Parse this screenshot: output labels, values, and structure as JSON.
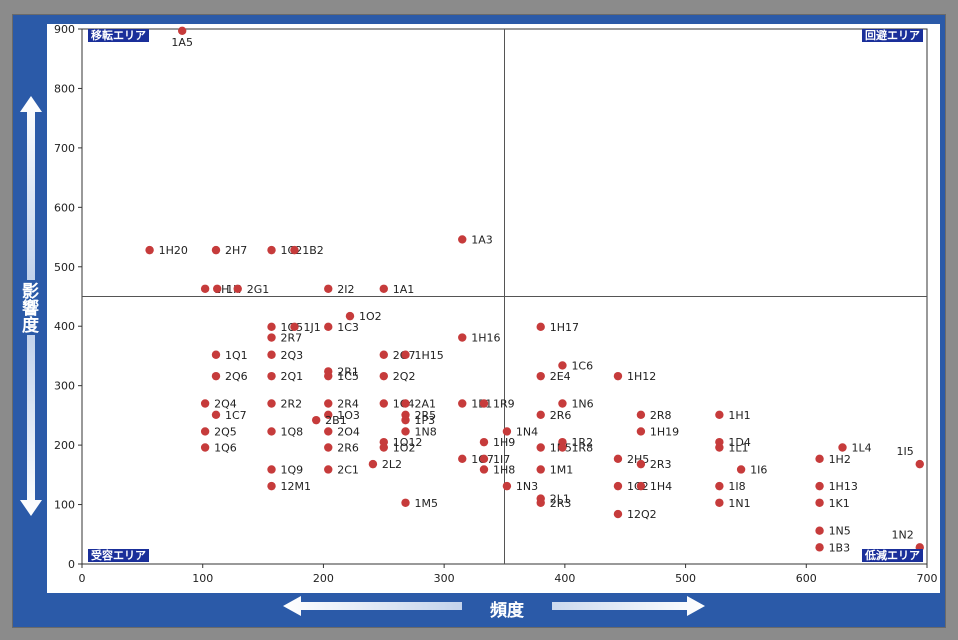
{
  "chart_data": {
    "type": "scatter",
    "title": "",
    "xlabel": "頻度",
    "ylabel": "影響度",
    "xlim": [
      0,
      700
    ],
    "ylim": [
      0,
      900
    ],
    "xticks": [
      0,
      100,
      200,
      300,
      400,
      500,
      600,
      700
    ],
    "yticks": [
      0,
      100,
      200,
      300,
      400,
      500,
      600,
      700,
      800,
      900
    ],
    "divider_x": 350,
    "divider_y": 450,
    "point_color": "#c63b3b",
    "area_labels": {
      "top_left": "移転エリア",
      "top_right": "回避エリア",
      "bottom_left": "受容エリア",
      "bottom_right": "低減エリア"
    },
    "points": [
      {
        "label": "1A5",
        "x": 83,
        "y": 897
      },
      {
        "label": "1H20",
        "x": 56,
        "y": 528
      },
      {
        "label": "2H7",
        "x": 111,
        "y": 528
      },
      {
        "label": "1C21B2",
        "x": 157,
        "y": 528
      },
      {
        "label": "",
        "x": 176,
        "y": 528
      },
      {
        "label": "1A3",
        "x": 315,
        "y": 546
      },
      {
        "label": "1H",
        "x": 102,
        "y": 463
      },
      {
        "label": "1K",
        "x": 112,
        "y": 463
      },
      {
        "label": "2G1",
        "x": 129,
        "y": 463
      },
      {
        "label": "2I2",
        "x": 204,
        "y": 463
      },
      {
        "label": "1A1",
        "x": 250,
        "y": 463
      },
      {
        "label": "1O2",
        "x": 222,
        "y": 417
      },
      {
        "label": "1O5",
        "x": 157,
        "y": 399
      },
      {
        "label": "1J1",
        "x": 176,
        "y": 399
      },
      {
        "label": "1C3",
        "x": 204,
        "y": 399
      },
      {
        "label": "1H17",
        "x": 380,
        "y": 399
      },
      {
        "label": "2R7",
        "x": 157,
        "y": 381
      },
      {
        "label": "1H16",
        "x": 315,
        "y": 381
      },
      {
        "label": "1Q1",
        "x": 111,
        "y": 352
      },
      {
        "label": "2Q3",
        "x": 157,
        "y": 352
      },
      {
        "label": "2O7",
        "x": 250,
        "y": 352
      },
      {
        "label": "1H15",
        "x": 268,
        "y": 352
      },
      {
        "label": "1C6",
        "x": 398,
        "y": 334
      },
      {
        "label": "2R1",
        "x": 204,
        "y": 324
      },
      {
        "label": "2Q6",
        "x": 111,
        "y": 316
      },
      {
        "label": "2Q1",
        "x": 157,
        "y": 316
      },
      {
        "label": "1C5",
        "x": 204,
        "y": 316
      },
      {
        "label": "2Q2",
        "x": 250,
        "y": 316
      },
      {
        "label": "2E4",
        "x": 380,
        "y": 316
      },
      {
        "label": "1H12",
        "x": 444,
        "y": 316
      },
      {
        "label": "2Q4",
        "x": 102,
        "y": 270
      },
      {
        "label": "2R2",
        "x": 157,
        "y": 270
      },
      {
        "label": "2R4",
        "x": 204,
        "y": 270
      },
      {
        "label": "1C4",
        "x": 250,
        "y": 270
      },
      {
        "label": "2A1",
        "x": 268,
        "y": 270
      },
      {
        "label": "1E1",
        "x": 315,
        "y": 270
      },
      {
        "label": "1R9",
        "x": 333,
        "y": 270
      },
      {
        "label": "1N6",
        "x": 398,
        "y": 270
      },
      {
        "label": "1C7",
        "x": 111,
        "y": 251
      },
      {
        "label": "1O3",
        "x": 204,
        "y": 251
      },
      {
        "label": "2R5",
        "x": 268,
        "y": 251
      },
      {
        "label": "2R6",
        "x": 380,
        "y": 251
      },
      {
        "label": "2R8",
        "x": 463,
        "y": 251
      },
      {
        "label": "1H1",
        "x": 528,
        "y": 251
      },
      {
        "label": "2B1",
        "x": 194,
        "y": 242
      },
      {
        "label": "1P3",
        "x": 268,
        "y": 242
      },
      {
        "label": "2Q5",
        "x": 102,
        "y": 223
      },
      {
        "label": "1Q8",
        "x": 157,
        "y": 223
      },
      {
        "label": "2O4",
        "x": 204,
        "y": 223
      },
      {
        "label": "1N8",
        "x": 268,
        "y": 223
      },
      {
        "label": "1N4",
        "x": 352,
        "y": 223
      },
      {
        "label": "1H19",
        "x": 463,
        "y": 223
      },
      {
        "label": "1O12",
        "x": 250,
        "y": 205
      },
      {
        "label": "1H9",
        "x": 333,
        "y": 205
      },
      {
        "label": "1R2",
        "x": 398,
        "y": 205
      },
      {
        "label": "1D4",
        "x": 528,
        "y": 205
      },
      {
        "label": "1Q6",
        "x": 102,
        "y": 196
      },
      {
        "label": "2R6",
        "x": 204,
        "y": 196
      },
      {
        "label": "1O2",
        "x": 250,
        "y": 196
      },
      {
        "label": "1N5",
        "x": 380,
        "y": 196
      },
      {
        "label": "1R8",
        "x": 398,
        "y": 196
      },
      {
        "label": "1L1",
        "x": 528,
        "y": 196
      },
      {
        "label": "1L4",
        "x": 630,
        "y": 196
      },
      {
        "label": "1O7",
        "x": 315,
        "y": 177
      },
      {
        "label": "1I7",
        "x": 333,
        "y": 177
      },
      {
        "label": "2H5",
        "x": 444,
        "y": 177
      },
      {
        "label": "1H2",
        "x": 611,
        "y": 177
      },
      {
        "label": "2L2",
        "x": 241,
        "y": 168
      },
      {
        "label": "2R3",
        "x": 463,
        "y": 168
      },
      {
        "label": "1I5",
        "x": 694,
        "y": 168
      },
      {
        "label": "1Q9",
        "x": 157,
        "y": 159
      },
      {
        "label": "2C1",
        "x": 204,
        "y": 159
      },
      {
        "label": "1H8",
        "x": 333,
        "y": 159
      },
      {
        "label": "1M1",
        "x": 380,
        "y": 159
      },
      {
        "label": "1I6",
        "x": 546,
        "y": 159
      },
      {
        "label": "12M1",
        "x": 157,
        "y": 131
      },
      {
        "label": "1N3",
        "x": 352,
        "y": 131
      },
      {
        "label": "1C2",
        "x": 444,
        "y": 131
      },
      {
        "label": "1H4",
        "x": 463,
        "y": 131
      },
      {
        "label": "1I8",
        "x": 528,
        "y": 131
      },
      {
        "label": "1H13",
        "x": 611,
        "y": 131
      },
      {
        "label": "2L1",
        "x": 380,
        "y": 110
      },
      {
        "label": "1M5",
        "x": 268,
        "y": 103
      },
      {
        "label": "2R3",
        "x": 380,
        "y": 103
      },
      {
        "label": "1N1",
        "x": 528,
        "y": 103
      },
      {
        "label": "1K1",
        "x": 611,
        "y": 103
      },
      {
        "label": "12Q2",
        "x": 444,
        "y": 84
      },
      {
        "label": "1N5",
        "x": 611,
        "y": 56
      },
      {
        "label": "1B3",
        "x": 611,
        "y": 28
      },
      {
        "label": "1N2",
        "x": 694,
        "y": 28
      }
    ]
  }
}
